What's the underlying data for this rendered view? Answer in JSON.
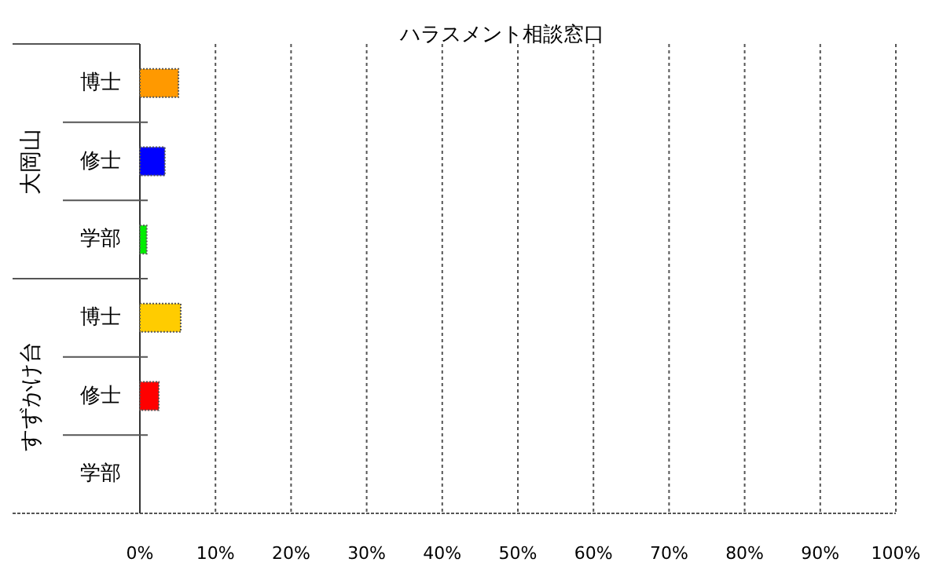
{
  "chart_data": {
    "type": "bar",
    "orientation": "horizontal",
    "title": "ハラスメント相談窓口",
    "categories": [
      "博士",
      "修士",
      "学部",
      "博士",
      "修士",
      "学部"
    ],
    "values": [
      5.1,
      3.3,
      0.9,
      5.4,
      2.5,
      0
    ],
    "colors": [
      "#ff9900",
      "#0000ff",
      "#00ee00",
      "#ffcc00",
      "#ff0000",
      "#cccccc"
    ],
    "xlim": [
      0,
      100
    ],
    "xticks": [
      {
        "value": 0,
        "label": "0%"
      },
      {
        "value": 10,
        "label": "10%"
      },
      {
        "value": 20,
        "label": "20%"
      },
      {
        "value": 30,
        "label": "30%"
      },
      {
        "value": 40,
        "label": "40%"
      },
      {
        "value": 50,
        "label": "50%"
      },
      {
        "value": 60,
        "label": "60%"
      },
      {
        "value": 70,
        "label": "70%"
      },
      {
        "value": 80,
        "label": "80%"
      },
      {
        "value": 90,
        "label": "90%"
      },
      {
        "value": 100,
        "label": "100%"
      }
    ],
    "grid": "x",
    "annotations": [
      "大岡山",
      "すずかけ台"
    ]
  }
}
